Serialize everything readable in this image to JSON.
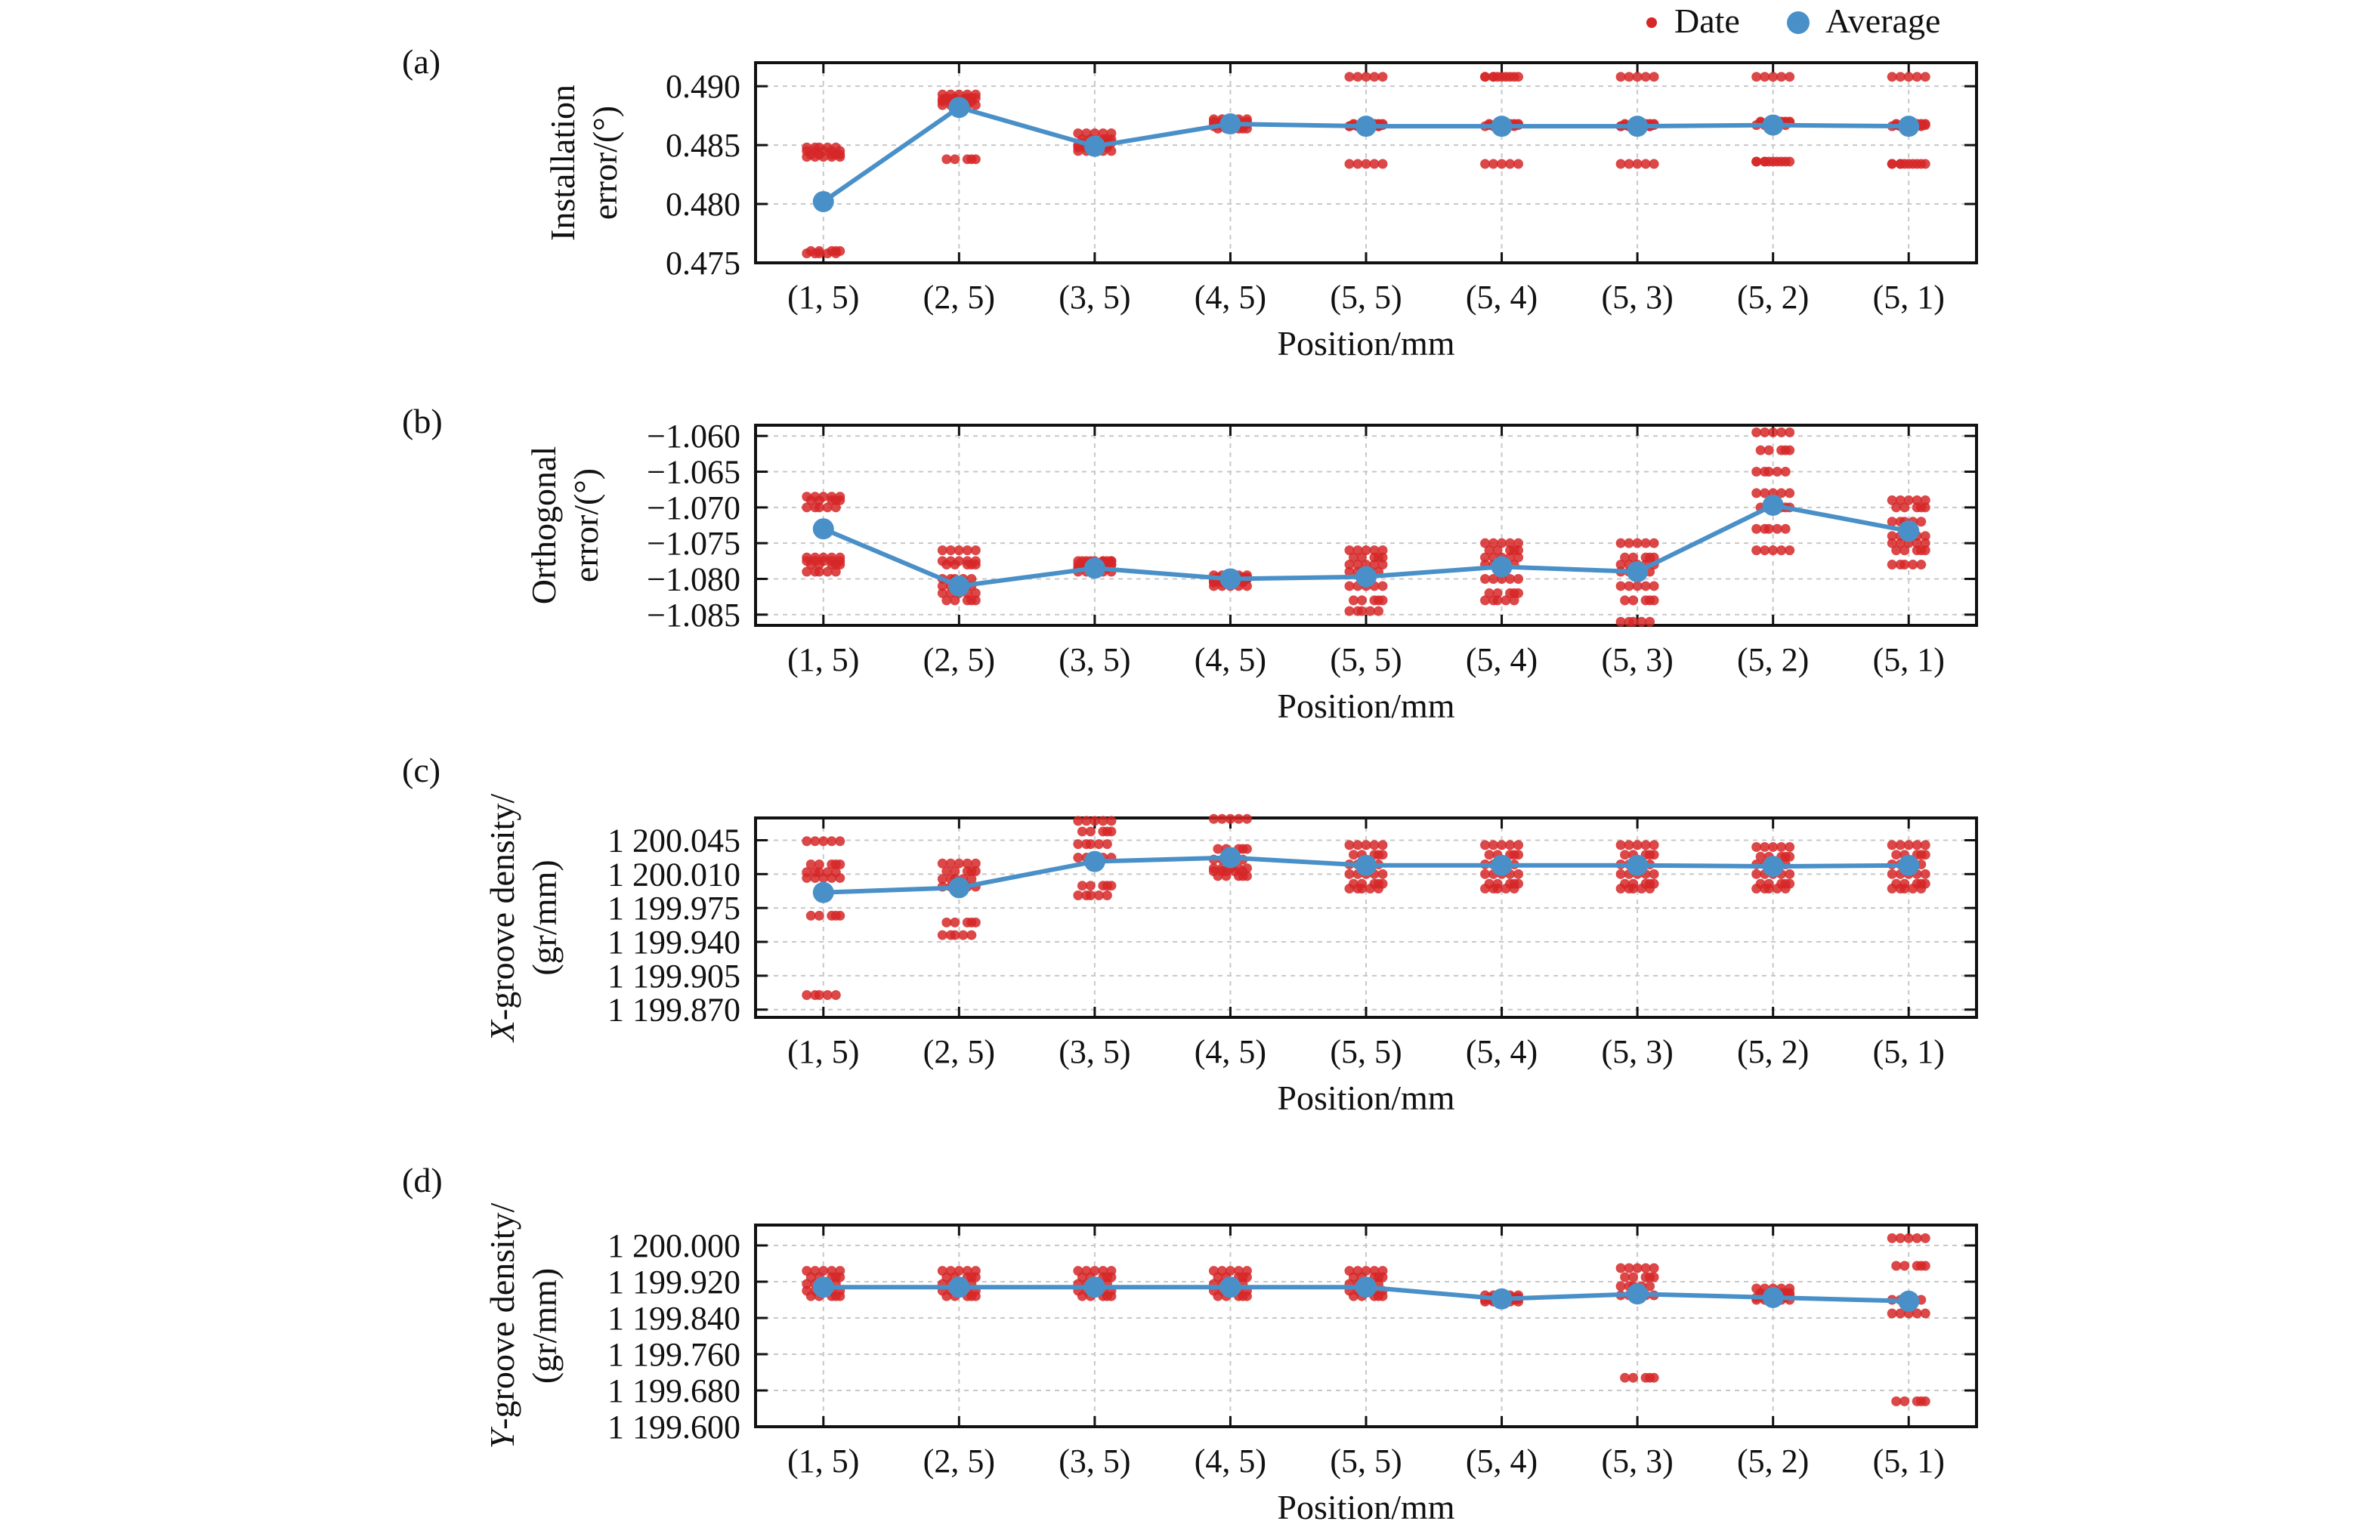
{
  "legend": {
    "placement": "top-right",
    "items": [
      {
        "label": "Date",
        "color": "#d62728",
        "marker": "small-dot"
      },
      {
        "label": "Average",
        "color": "#4a90c8",
        "marker": "large-dot"
      }
    ]
  },
  "colors": {
    "date": "#d62728",
    "average": "#4a90c8",
    "axis": "#111111",
    "grid": "#c8c8c8"
  },
  "chart_data": [
    {
      "panel_label": "(a)",
      "type": "scatter",
      "ylabel_lines": [
        "Installation",
        "error/(°)"
      ],
      "xlabel": "Position/mm",
      "categories": [
        "(1, 5)",
        "(2, 5)",
        "(3, 5)",
        "(4, 5)",
        "(5, 5)",
        "(5, 4)",
        "(5, 3)",
        "(5, 2)",
        "(5, 1)"
      ],
      "ylim": [
        0.475,
        0.492
      ],
      "yticks": [
        0.475,
        0.48,
        0.485,
        0.49
      ],
      "ytick_labels": [
        "0.475",
        "0.480",
        "0.485",
        "0.490"
      ],
      "grid": true,
      "series": [
        {
          "name": "Date",
          "values": [
            [
              0.4845,
              0.4842,
              0.4848,
              0.484,
              0.476,
              0.4758
            ],
            [
              0.4893,
              0.489,
              0.4887,
              0.4884,
              0.4838,
              0.4889
            ],
            [
              0.486,
              0.4852,
              0.4848,
              0.4845,
              0.4855,
              0.485
            ],
            [
              0.4872,
              0.4868,
              0.4866,
              0.487,
              0.4864,
              0.4868
            ],
            [
              0.4908,
              0.4867,
              0.4866,
              0.4834,
              0.4868,
              0.4866
            ],
            [
              0.4908,
              0.4867,
              0.4866,
              0.4834,
              0.4868,
              0.4908
            ],
            [
              0.4908,
              0.4867,
              0.4866,
              0.4834,
              0.4868,
              0.4866
            ],
            [
              0.4908,
              0.4869,
              0.4867,
              0.4836,
              0.487,
              0.4836
            ],
            [
              0.4908,
              0.4867,
              0.4866,
              0.4834,
              0.4868,
              0.4834
            ]
          ]
        },
        {
          "name": "Average",
          "values": [
            0.4802,
            0.4882,
            0.4849,
            0.4868,
            0.4866,
            0.4866,
            0.4866,
            0.4867,
            0.4866
          ]
        }
      ]
    },
    {
      "panel_label": "(b)",
      "type": "scatter",
      "ylabel_lines": [
        "Orthogonal",
        "error/(°)"
      ],
      "xlabel": "Position/mm",
      "categories": [
        "(1, 5)",
        "(2, 5)",
        "(3, 5)",
        "(4, 5)",
        "(5, 5)",
        "(5, 4)",
        "(5, 3)",
        "(5, 2)",
        "(5, 1)"
      ],
      "ylim": [
        -1.0865,
        -1.0585
      ],
      "yticks": [
        -1.085,
        -1.08,
        -1.075,
        -1.07,
        -1.065,
        -1.06
      ],
      "ytick_labels": [
        "−1.085",
        "−1.080",
        "−1.075",
        "−1.070",
        "−1.065",
        "−1.060"
      ],
      "grid": true,
      "series": [
        {
          "name": "Date",
          "values": [
            [
              -1.0685,
              -1.069,
              -1.07,
              -1.077,
              -1.078,
              -1.079,
              -1.0775
            ],
            [
              -1.076,
              -1.078,
              -1.08,
              -1.082,
              -1.083,
              -1.081,
              -1.0775
            ],
            [
              -1.0775,
              -1.078,
              -1.0785,
              -1.079,
              -1.0775,
              -1.0785,
              -1.078
            ],
            [
              -1.0795,
              -1.08,
              -1.0805,
              -1.081,
              -1.0798,
              -1.0803,
              -1.08
            ],
            [
              -1.076,
              -1.077,
              -1.079,
              -1.081,
              -1.083,
              -1.0845,
              -1.078
            ],
            [
              -1.075,
              -1.076,
              -1.078,
              -1.08,
              -1.082,
              -1.083,
              -1.077
            ],
            [
              -1.075,
              -1.077,
              -1.079,
              -1.081,
              -1.083,
              -1.086,
              -1.078
            ],
            [
              -1.0595,
              -1.062,
              -1.065,
              -1.068,
              -1.07,
              -1.073,
              -1.076
            ],
            [
              -1.069,
              -1.07,
              -1.072,
              -1.074,
              -1.076,
              -1.078,
              -1.075
            ]
          ]
        },
        {
          "name": "Average",
          "values": [
            -1.073,
            -1.081,
            -1.0785,
            -1.08,
            -1.0797,
            -1.0783,
            -1.079,
            -1.0697,
            -1.0733
          ]
        }
      ]
    },
    {
      "panel_label": "(c)",
      "type": "scatter",
      "ylabel_lines": [
        "X-groove density/",
        "(gr/mm)"
      ],
      "xlabel": "Position/mm",
      "categories": [
        "(1, 5)",
        "(2, 5)",
        "(3, 5)",
        "(4, 5)",
        "(5, 5)",
        "(5, 4)",
        "(5, 3)",
        "(5, 2)",
        "(5, 1)"
      ],
      "ylim": [
        1199.862,
        1200.068
      ],
      "yticks": [
        1199.87,
        1199.905,
        1199.94,
        1199.975,
        1200.01,
        1200.045
      ],
      "ytick_labels": [
        "1 199.870",
        "1 199.905",
        "1 199.940",
        "1 199.975",
        "1 200.010",
        "1 200.045"
      ],
      "grid": true,
      "series": [
        {
          "name": "Date",
          "values": [
            [
              1200.044,
              1200.02,
              1200.012,
              1200.006,
              1199.967,
              1199.885
            ],
            [
              1200.021,
              1200.013,
              1200.005,
              1199.997,
              1199.96,
              1199.947
            ],
            [
              1200.065,
              1200.054,
              1200.041,
              1200.027,
              1199.998,
              1199.988
            ],
            [
              1200.067,
              1200.036,
              1200.025,
              1200.016,
              1200.008,
              1200.013
            ],
            [
              1200.04,
              1200.03,
              1200.02,
              1200.01,
              1200.0,
              1199.995
            ],
            [
              1200.04,
              1200.03,
              1200.02,
              1200.01,
              1200.0,
              1199.995
            ],
            [
              1200.04,
              1200.03,
              1200.02,
              1200.01,
              1200.0,
              1199.995
            ],
            [
              1200.038,
              1200.028,
              1200.02,
              1200.01,
              1200.0,
              1199.995
            ],
            [
              1200.04,
              1200.03,
              1200.02,
              1200.01,
              1200.0,
              1199.995
            ]
          ]
        },
        {
          "name": "Average",
          "values": [
            1199.991,
            1199.996,
            1200.023,
            1200.027,
            1200.019,
            1200.019,
            1200.019,
            1200.018,
            1200.019
          ]
        }
      ]
    },
    {
      "panel_label": "(d)",
      "type": "scatter",
      "ylabel_lines": [
        "Y-groove density/",
        "(gr/mm)"
      ],
      "xlabel": "Position/mm",
      "categories": [
        "(1, 5)",
        "(2, 5)",
        "(3, 5)",
        "(4, 5)",
        "(5, 5)",
        "(5, 4)",
        "(5, 3)",
        "(5, 2)",
        "(5, 1)"
      ],
      "ylim": [
        1199.6,
        1200.045
      ],
      "yticks": [
        1199.6,
        1199.68,
        1199.76,
        1199.84,
        1199.92,
        1200.0
      ],
      "ytick_labels": [
        "1 199.600",
        "1 199.680",
        "1 199.760",
        "1 199.840",
        "1 199.920",
        "1 200.000"
      ],
      "grid": true,
      "series": [
        {
          "name": "Date",
          "values": [
            [
              1199.944,
              1199.93,
              1199.915,
              1199.9,
              1199.888
            ],
            [
              1199.944,
              1199.93,
              1199.915,
              1199.9,
              1199.888
            ],
            [
              1199.944,
              1199.93,
              1199.915,
              1199.9,
              1199.888
            ],
            [
              1199.944,
              1199.93,
              1199.915,
              1199.9,
              1199.888
            ],
            [
              1199.944,
              1199.93,
              1199.915,
              1199.9,
              1199.888
            ],
            [
              1199.89,
              1199.885,
              1199.88,
              1199.876,
              1199.882
            ],
            [
              1199.95,
              1199.93,
              1199.91,
              1199.89,
              1199.708
            ],
            [
              1199.905,
              1199.895,
              1199.885,
              1199.88,
              1199.89
            ],
            [
              1200.016,
              1199.955,
              1199.88,
              1199.85,
              1199.656
            ]
          ]
        },
        {
          "name": "Average",
          "values": [
            1199.908,
            1199.908,
            1199.908,
            1199.908,
            1199.908,
            1199.882,
            1199.893,
            1199.885,
            1199.877
          ]
        }
      ]
    }
  ]
}
